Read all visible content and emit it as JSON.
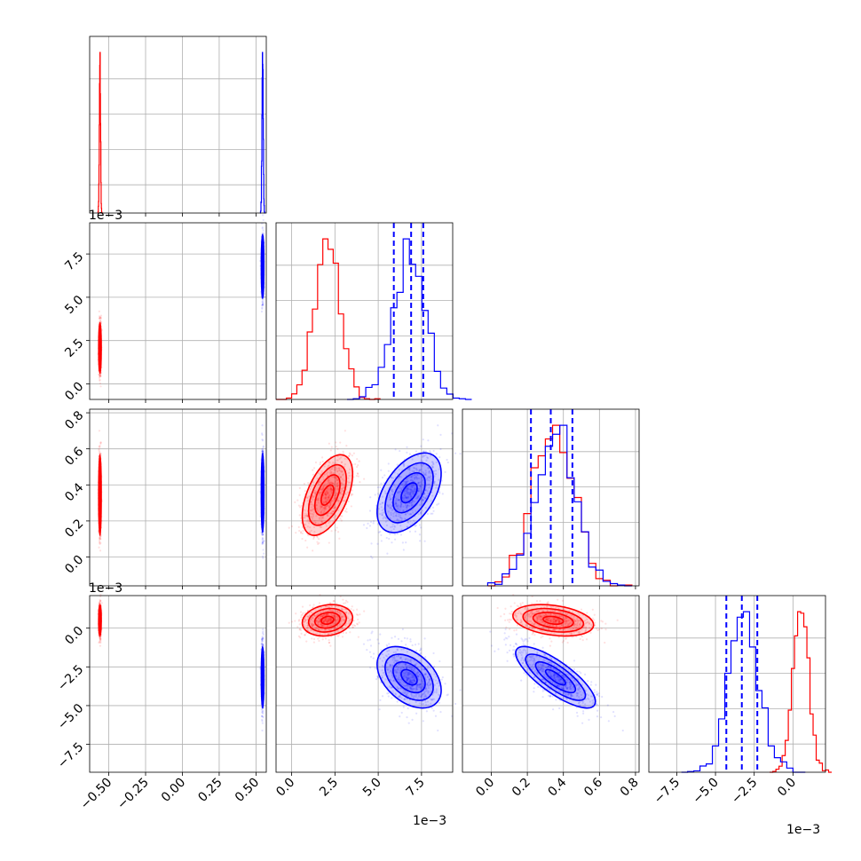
{
  "figure": {
    "title": "",
    "colors": {
      "series_a": "#ff0000",
      "series_b": "#0000ff",
      "grid": "#b0b0b0"
    }
  },
  "chart_data": {
    "type": "scatter",
    "subtype": "corner-plot",
    "grid": true,
    "series": [
      {
        "color": "#ff0000",
        "p0": -0.56,
        "p1": 0.0021,
        "p2": 0.35,
        "p3": 0.0005,
        "sd": [
          0.004,
          0.00075,
          0.11,
          0.0005
        ]
      },
      {
        "color": "#0000ff",
        "p0": 0.545,
        "p1": 0.0068,
        "p2": 0.36,
        "p3": -0.0032,
        "sd": [
          0.004,
          0.0009,
          0.11,
          0.001
        ]
      }
    ],
    "quantile_lines": [
      {
        "param": 1,
        "values": [
          0.0059,
          0.0069,
          0.0076
        ]
      },
      {
        "param": 2,
        "values": [
          0.22,
          0.33,
          0.45
        ]
      },
      {
        "param": 3,
        "values": [
          -0.0043,
          -0.0033,
          -0.0023
        ]
      }
    ],
    "axes": [
      {
        "param": 0,
        "range": [
          -0.63,
          0.57
        ],
        "ticks": [
          "−0.50",
          "−0.25",
          "0.00",
          "0.25",
          "0.50"
        ],
        "tick_values": [
          -0.5,
          -0.25,
          0,
          0.25,
          0.5
        ],
        "offset": ""
      },
      {
        "param": 1,
        "range": [
          -0.0009,
          0.0093
        ],
        "ticks": [
          "0.0",
          "2.5",
          "5.0",
          "7.5"
        ],
        "tick_values": [
          0,
          0.0025,
          0.005,
          0.0075
        ],
        "offset": "1e−3"
      },
      {
        "param": 2,
        "range": [
          -0.16,
          0.82
        ],
        "ticks": [
          "0.0",
          "0.2",
          "0.4",
          "0.6",
          "0.8"
        ],
        "tick_values": [
          0,
          0.2,
          0.4,
          0.6,
          0.8
        ],
        "offset": ""
      },
      {
        "param": 3,
        "range": [
          -0.0093,
          0.0021
        ],
        "ticks": [
          "−7.5",
          "−5.0",
          "−2.5",
          "0.0"
        ],
        "tick_values": [
          -0.0075,
          -0.005,
          -0.0025,
          0
        ],
        "offset": "1e−3"
      }
    ]
  }
}
